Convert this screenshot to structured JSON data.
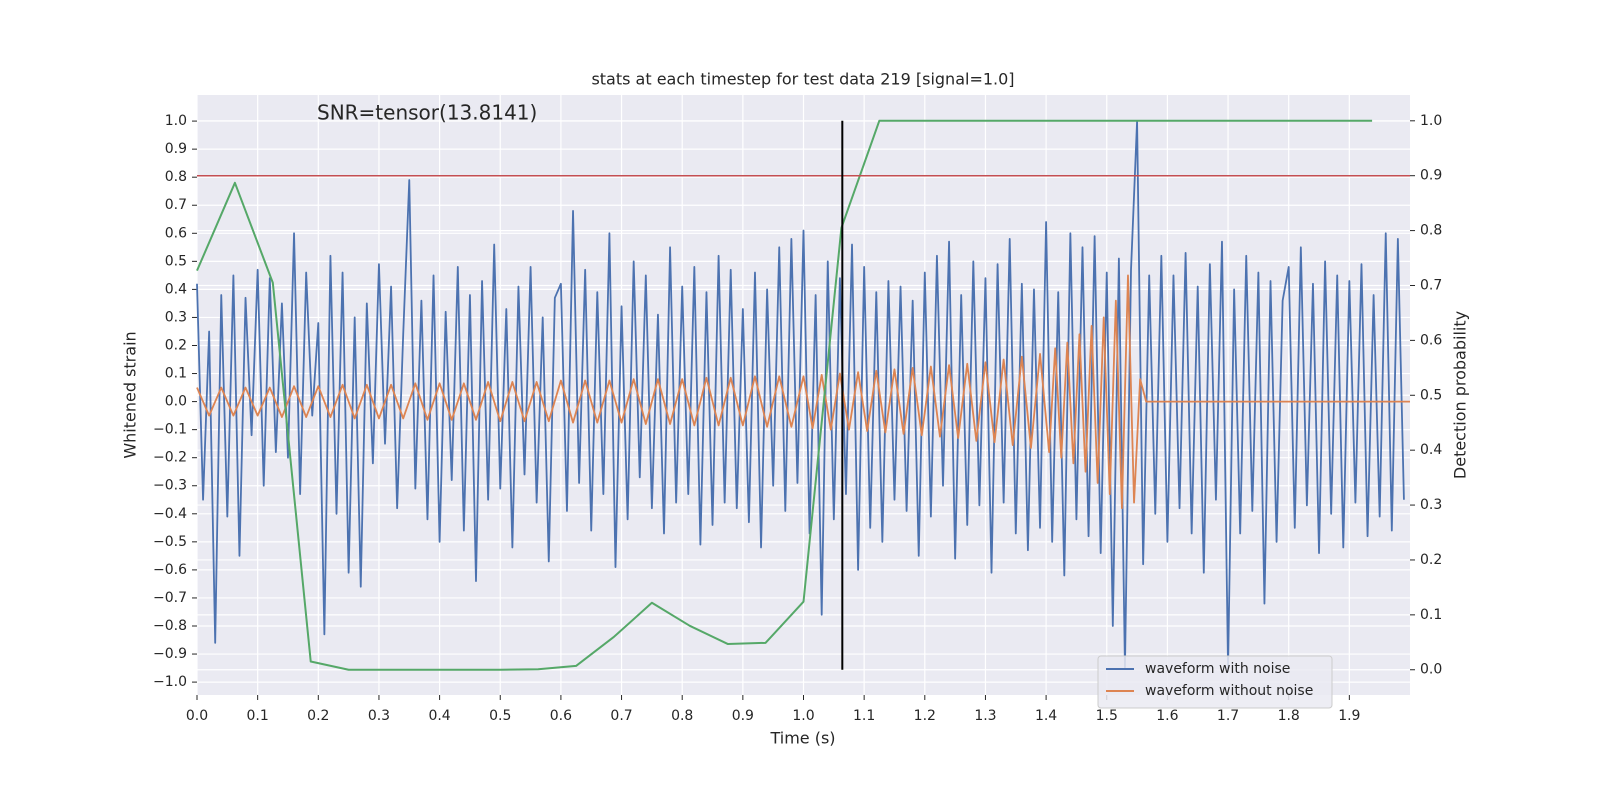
{
  "chart_data": {
    "type": "line",
    "title": "stats at each timestep for test data 219 [signal=1.0]",
    "xlabel": "Time (s)",
    "ylabel": "Whitened strain",
    "y2label": "Detection probability",
    "annotation": "SNR=tensor(13.8141)",
    "grid": true,
    "legend": "lower right",
    "xlim": [
      0,
      2.0
    ],
    "ylim": [
      -1.046,
      1.093
    ],
    "y2lim": [
      -0.046,
      1.047
    ],
    "xticks": [
      {
        "value": 0,
        "label": "0.0"
      },
      0.1,
      0.2,
      0.3,
      0.4,
      0.5,
      0.6,
      0.7,
      0.8,
      0.9,
      {
        "value": 1,
        "label": "1.0"
      },
      1.1,
      1.2,
      1.3,
      1.4,
      1.5,
      1.6,
      1.7,
      1.8,
      1.9
    ],
    "yticks": [
      {
        "value": -1,
        "label": "−1.0"
      },
      {
        "value": -0.9,
        "label": "−0.9"
      },
      {
        "value": -0.8,
        "label": "−0.8"
      },
      {
        "value": -0.7,
        "label": "−0.7"
      },
      {
        "value": -0.6,
        "label": "−0.6"
      },
      {
        "value": -0.5,
        "label": "−0.5"
      },
      {
        "value": -0.4,
        "label": "−0.4"
      },
      {
        "value": -0.3,
        "label": "−0.3"
      },
      {
        "value": -0.2,
        "label": "−0.2"
      },
      {
        "value": -0.1,
        "label": "−0.1"
      },
      {
        "value": 0,
        "label": "0.0"
      },
      0.1,
      0.2,
      0.3,
      0.4,
      0.5,
      0.6,
      0.7,
      0.8,
      0.9,
      {
        "value": 1,
        "label": "1.0"
      }
    ],
    "y2ticks": [
      {
        "value": 0,
        "label": "0.0"
      },
      0.1,
      0.2,
      0.3,
      0.4,
      0.5,
      0.6,
      0.7,
      0.8,
      0.9,
      {
        "value": 1,
        "label": "1.0"
      }
    ],
    "threshold": {
      "value": 0.9,
      "axis": "y2",
      "color": "#c44e52"
    },
    "vertical_line": {
      "x": 1.064,
      "from": 0,
      "to": 1,
      "axis": "y2",
      "color": "#000000"
    },
    "series": [
      {
        "name": "waveform with noise",
        "color": "#4c72b0",
        "x": [
          0,
          0.01,
          0.02,
          0.03,
          0.04,
          0.05,
          0.06,
          0.07,
          0.08,
          0.09,
          0.1,
          0.11,
          0.12,
          0.13,
          0.14,
          0.15,
          0.16,
          0.17,
          0.18,
          0.19,
          0.2,
          0.21,
          0.22,
          0.23,
          0.24,
          0.25,
          0.26,
          0.27,
          0.28,
          0.29,
          0.3,
          0.31,
          0.32,
          0.33,
          0.34,
          0.35,
          0.36,
          0.37,
          0.38,
          0.39,
          0.4,
          0.41,
          0.42,
          0.43,
          0.44,
          0.45,
          0.46,
          0.47,
          0.48,
          0.49,
          0.5,
          0.51,
          0.52,
          0.53,
          0.54,
          0.55,
          0.56,
          0.57,
          0.58,
          0.59,
          0.6,
          0.61,
          0.62,
          0.63,
          0.64,
          0.65,
          0.66,
          0.67,
          0.68,
          0.69,
          0.7,
          0.71,
          0.72,
          0.73,
          0.74,
          0.75,
          0.76,
          0.77,
          0.78,
          0.79,
          0.8,
          0.81,
          0.82,
          0.83,
          0.84,
          0.85,
          0.86,
          0.87,
          0.88,
          0.89,
          0.9,
          0.91,
          0.92,
          0.93,
          0.94,
          0.95,
          0.96,
          0.97,
          0.98,
          0.99,
          1.0,
          1.01,
          1.02,
          1.03,
          1.04,
          1.05,
          1.06,
          1.07,
          1.08,
          1.09,
          1.1,
          1.11,
          1.12,
          1.13,
          1.14,
          1.15,
          1.16,
          1.17,
          1.18,
          1.19,
          1.2,
          1.21,
          1.22,
          1.23,
          1.24,
          1.25,
          1.26,
          1.27,
          1.28,
          1.29,
          1.3,
          1.31,
          1.32,
          1.33,
          1.34,
          1.35,
          1.36,
          1.37,
          1.38,
          1.39,
          1.4,
          1.41,
          1.42,
          1.43,
          1.44,
          1.45,
          1.46,
          1.47,
          1.48,
          1.49,
          1.5,
          1.51,
          1.52,
          1.53,
          1.54,
          1.55,
          1.56,
          1.57,
          1.58,
          1.59,
          1.6,
          1.61,
          1.62,
          1.63,
          1.64,
          1.65,
          1.66,
          1.67,
          1.68,
          1.69,
          1.7,
          1.71,
          1.72,
          1.73,
          1.74,
          1.75,
          1.76,
          1.77,
          1.78,
          1.79,
          1.8,
          1.81,
          1.82,
          1.83,
          1.84,
          1.85,
          1.86,
          1.87,
          1.88,
          1.89,
          1.9,
          1.91,
          1.92,
          1.93,
          1.94,
          1.95,
          1.96,
          1.97,
          1.98,
          1.99
        ],
        "values": [
          0.42,
          -0.35,
          0.25,
          -0.86,
          0.38,
          -0.41,
          0.45,
          -0.55,
          0.37,
          -0.12,
          0.47,
          -0.3,
          0.44,
          -0.18,
          0.35,
          -0.2,
          0.6,
          -0.33,
          0.46,
          -0.05,
          0.28,
          -0.83,
          0.52,
          -0.4,
          0.46,
          -0.61,
          0.3,
          -0.66,
          0.35,
          -0.22,
          0.49,
          -0.15,
          0.41,
          -0.38,
          0.24,
          0.79,
          -0.31,
          0.36,
          -0.42,
          0.45,
          -0.5,
          0.32,
          -0.28,
          0.48,
          -0.46,
          0.38,
          -0.64,
          0.43,
          -0.35,
          0.56,
          -0.31,
          0.33,
          -0.52,
          0.41,
          -0.26,
          0.48,
          -0.36,
          0.3,
          -0.57,
          0.37,
          0.42,
          -0.39,
          0.68,
          -0.29,
          0.47,
          -0.46,
          0.39,
          -0.33,
          0.6,
          -0.59,
          0.34,
          -0.42,
          0.5,
          -0.27,
          0.45,
          -0.38,
          0.31,
          -0.47,
          0.55,
          -0.36,
          0.41,
          -0.33,
          0.48,
          -0.51,
          0.39,
          -0.44,
          0.52,
          -0.36,
          0.47,
          -0.38,
          0.33,
          -0.43,
          0.46,
          -0.52,
          0.4,
          -0.3,
          0.55,
          -0.39,
          0.58,
          -0.29,
          0.61,
          -0.47,
          0.38,
          -0.76,
          0.5,
          -0.42,
          0.44,
          -0.33,
          0.56,
          -0.6,
          0.48,
          -0.45,
          0.39,
          -0.5,
          0.43,
          -0.35,
          0.41,
          -0.39,
          0.36,
          -0.55,
          0.46,
          -0.41,
          0.52,
          -0.3,
          0.57,
          -0.56,
          0.38,
          -0.44,
          0.5,
          -0.37,
          0.44,
          -0.61,
          0.49,
          -0.36,
          0.58,
          -0.47,
          0.42,
          -0.53,
          0.4,
          -0.45,
          0.64,
          -0.5,
          0.39,
          -0.62,
          0.6,
          -0.42,
          0.55,
          -0.48,
          0.59,
          -0.54,
          0.46,
          -0.8,
          0.51,
          -0.95,
          0.47,
          1.0,
          -0.58,
          0.45,
          -0.4,
          0.52,
          -0.5,
          0.45,
          -0.38,
          0.53,
          -0.47,
          0.41,
          -0.61,
          0.49,
          -0.35,
          0.57,
          -0.95,
          0.4,
          -0.47,
          0.52,
          -0.39,
          0.46,
          -0.72,
          0.43,
          -0.5,
          0.36,
          0.48,
          -0.45,
          0.55,
          -0.37,
          0.42,
          -0.54,
          0.5,
          -0.4,
          0.45,
          -0.52,
          0.43,
          -0.36,
          0.49,
          -0.48,
          0.38,
          -0.41,
          0.6,
          -0.46,
          0.58,
          -0.35
        ]
      },
      {
        "name": "waveform without noise",
        "color": "#dd8452",
        "x": [
          0,
          0.02,
          0.04,
          0.06,
          0.08,
          0.1,
          0.12,
          0.14,
          0.16,
          0.18,
          0.2,
          0.22,
          0.24,
          0.26,
          0.28,
          0.3,
          0.32,
          0.34,
          0.36,
          0.38,
          0.4,
          0.42,
          0.44,
          0.46,
          0.48,
          0.5,
          0.52,
          0.54,
          0.56,
          0.58,
          0.6,
          0.62,
          0.64,
          0.66,
          0.68,
          0.7,
          0.72,
          0.74,
          0.76,
          0.78,
          0.8,
          0.82,
          0.84,
          0.86,
          0.88,
          0.9,
          0.92,
          0.94,
          0.96,
          0.98,
          1.0,
          1.015,
          1.03,
          1.045,
          1.06,
          1.075,
          1.09,
          1.105,
          1.12,
          1.135,
          1.15,
          1.165,
          1.18,
          1.195,
          1.21,
          1.225,
          1.24,
          1.255,
          1.27,
          1.285,
          1.3,
          1.315,
          1.33,
          1.345,
          1.36,
          1.375,
          1.39,
          1.405,
          1.415,
          1.425,
          1.435,
          1.445,
          1.455,
          1.465,
          1.475,
          1.485,
          1.495,
          1.505,
          1.515,
          1.525,
          1.535,
          1.545,
          1.555,
          1.565,
          2.0
        ],
        "values": [
          0.05,
          -0.05,
          0.05,
          -0.05,
          0.05,
          -0.05,
          0.05,
          -0.055,
          0.055,
          -0.055,
          0.055,
          -0.055,
          0.06,
          -0.06,
          0.06,
          -0.06,
          0.06,
          -0.06,
          0.065,
          -0.065,
          0.065,
          -0.065,
          0.065,
          -0.065,
          0.07,
          -0.07,
          0.07,
          -0.07,
          0.07,
          -0.07,
          0.075,
          -0.075,
          0.075,
          -0.075,
          0.075,
          -0.075,
          0.08,
          -0.08,
          0.08,
          -0.08,
          0.08,
          -0.085,
          0.085,
          -0.085,
          0.085,
          -0.085,
          0.09,
          -0.09,
          0.09,
          -0.09,
          0.09,
          -0.095,
          0.095,
          -0.1,
          0.1,
          -0.1,
          0.105,
          -0.105,
          0.11,
          -0.11,
          0.115,
          -0.115,
          0.12,
          -0.12,
          0.125,
          -0.125,
          0.13,
          -0.13,
          0.135,
          -0.14,
          0.14,
          -0.145,
          0.15,
          -0.155,
          0.16,
          -0.165,
          0.17,
          -0.18,
          0.19,
          -0.2,
          0.21,
          -0.22,
          0.24,
          -0.25,
          0.27,
          -0.29,
          0.3,
          -0.33,
          0.36,
          -0.38,
          0.45,
          -0.36,
          0.08,
          0.0,
          0.0
        ]
      },
      {
        "color": "#55a868",
        "axis": "y2",
        "x": [
          0,
          0.0625,
          0.125,
          0.1875,
          0.25,
          0.3125,
          0.375,
          0.4375,
          0.5,
          0.5625,
          0.625,
          0.6875,
          0.75,
          0.8125,
          0.875,
          0.9375,
          1.0,
          1.0625,
          1.125,
          1.1875,
          1.25,
          1.3125,
          1.375,
          1.4375,
          1.5,
          1.5625,
          1.625,
          1.6875,
          1.75,
          1.8125,
          1.875,
          1.9375
        ],
        "values": [
          0.727,
          0.887,
          0.705,
          0.015,
          0.0,
          0.0,
          0.0,
          0.0,
          0.0,
          0.001,
          0.007,
          0.06,
          0.122,
          0.08,
          0.047,
          0.049,
          0.124,
          0.805,
          1.0,
          1.0,
          1.0,
          1.0,
          1.0,
          1.0,
          1.0,
          1.0,
          1.0,
          1.0,
          1.0,
          1.0,
          1.0,
          1.0
        ]
      }
    ]
  }
}
